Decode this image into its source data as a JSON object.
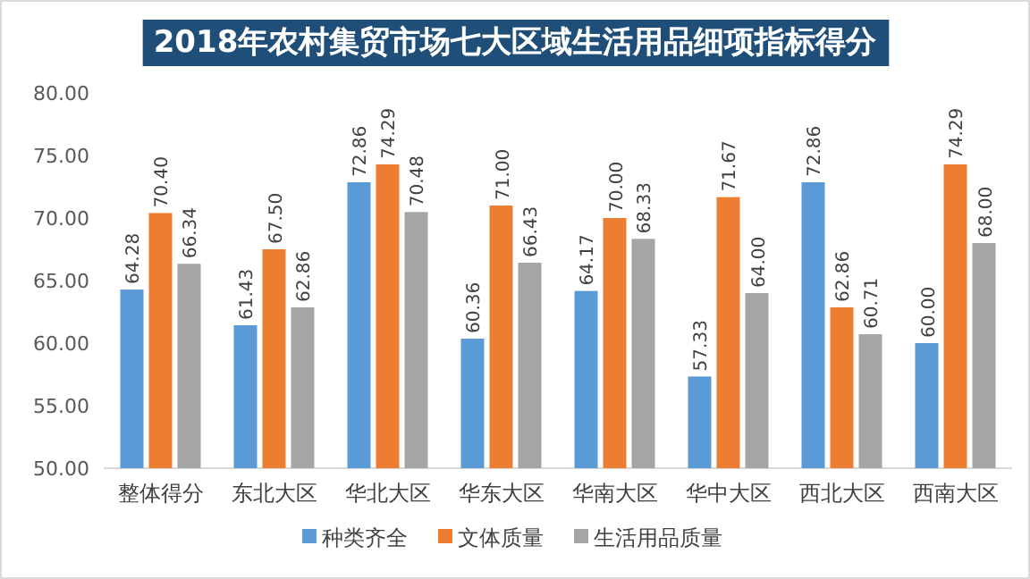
{
  "chart_data": {
    "type": "bar",
    "title": "2018年农村集贸市场七大区域生活用品细项指标得分",
    "categories": [
      "整体得分",
      "东北大区",
      "华北大区",
      "华东大区",
      "华南大区",
      "华中大区",
      "西北大区",
      "西南大区"
    ],
    "series": [
      {
        "name": "种类齐全",
        "color": "#5b9bd5",
        "values": [
          64.28,
          61.43,
          72.86,
          60.36,
          64.17,
          57.33,
          72.86,
          60.0
        ],
        "value_labels": [
          "64.28",
          "61.43",
          "72.86",
          "60.36",
          "64.17",
          "57.33",
          "72.86",
          "60.00"
        ]
      },
      {
        "name": "文体质量",
        "color": "#ed7d31",
        "values": [
          70.4,
          67.5,
          74.29,
          71.0,
          70.0,
          71.67,
          62.86,
          74.29
        ],
        "value_labels": [
          "70.40",
          "67.50",
          "74.29",
          "71.00",
          "70.00",
          "71.67",
          "62.86",
          "74.29"
        ]
      },
      {
        "name": "生活用品质量",
        "color": "#a5a5a5",
        "values": [
          66.34,
          62.86,
          70.48,
          66.43,
          68.33,
          64.0,
          60.71,
          68.0
        ],
        "value_labels": [
          "66.34",
          "62.86",
          "70.48",
          "66.43",
          "68.33",
          "64.00",
          "60.71",
          "68.00"
        ]
      }
    ],
    "ylim": [
      50,
      80
    ],
    "yticks": [
      {
        "value": 50,
        "label": "50.00"
      },
      {
        "value": 55,
        "label": "55.00"
      },
      {
        "value": 60,
        "label": "60.00"
      },
      {
        "value": 65,
        "label": "65.00"
      },
      {
        "value": 70,
        "label": "70.00"
      },
      {
        "value": 75,
        "label": "75.00"
      },
      {
        "value": 80,
        "label": "80.00"
      }
    ],
    "grid": false,
    "legend": "bottom"
  }
}
